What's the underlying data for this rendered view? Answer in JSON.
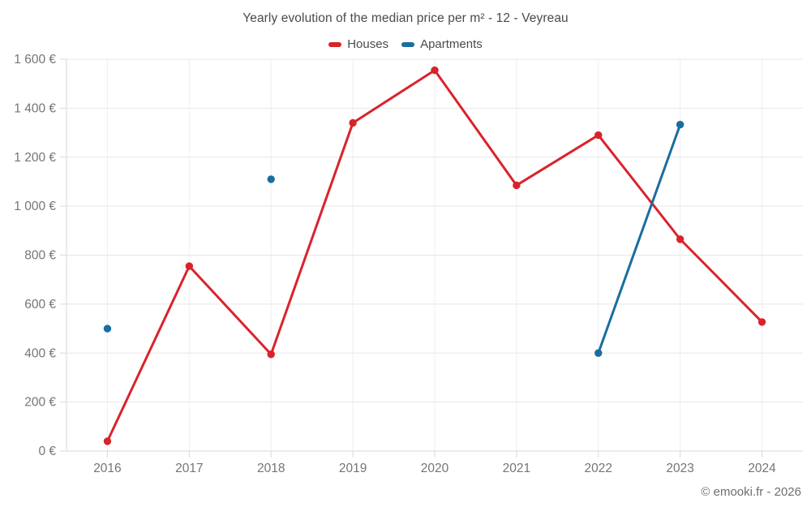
{
  "page": {
    "title": "Yearly evolution of the median price per m² - 12 - Veyreau",
    "footer": "© emooki.fr - 2026"
  },
  "chart_data": {
    "type": "line",
    "title": "Yearly evolution of the median price per m² - 12 - Veyreau",
    "x": [
      "2016",
      "2017",
      "2018",
      "2019",
      "2020",
      "2021",
      "2022",
      "2023",
      "2024"
    ],
    "series": [
      {
        "name": "Houses",
        "color": "#d9232b",
        "values": [
          40,
          755,
          395,
          1340,
          1555,
          1085,
          1290,
          865,
          527
        ]
      },
      {
        "name": "Apartments",
        "color": "#1a6d9f",
        "values": [
          500,
          null,
          1110,
          null,
          null,
          null,
          400,
          1333,
          null
        ]
      }
    ],
    "ylim": [
      0,
      1600
    ],
    "y_ticks": [
      {
        "value": 0,
        "label": "0 €"
      },
      {
        "value": 200,
        "label": "200 €"
      },
      {
        "value": 400,
        "label": "400 €"
      },
      {
        "value": 600,
        "label": "600 €"
      },
      {
        "value": 800,
        "label": "800 €"
      },
      {
        "value": 1000,
        "label": "1 000 €"
      },
      {
        "value": 1200,
        "label": "1 200 €"
      },
      {
        "value": 1400,
        "label": "1 400 €"
      },
      {
        "value": 1600,
        "label": "1 600 €"
      }
    ],
    "grid": true,
    "legend_position": "top",
    "unit": "€"
  },
  "style": {
    "grid_color_h": "#e7e7e7",
    "grid_color_v": "#efefef",
    "axis_color": "#d9d9d9",
    "tick_label_color": "#757575"
  }
}
